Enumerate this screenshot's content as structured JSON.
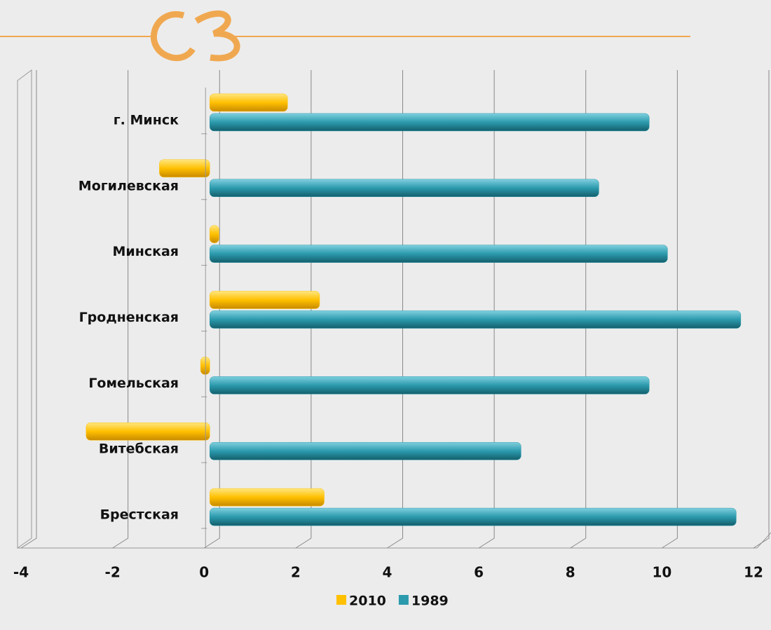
{
  "chart_data": {
    "type": "bar",
    "orientation": "horizontal",
    "categories": [
      "Брестская",
      "Витебская",
      "Гомельская",
      "Гродненская",
      "Минская",
      "Могилевская",
      "г. Минск"
    ],
    "series": [
      {
        "name": "2010",
        "color": "#ffc000",
        "values": [
          2.5,
          -2.7,
          -0.2,
          2.4,
          0.2,
          -1.1,
          1.7
        ]
      },
      {
        "name": "1989",
        "color": "#2b9aad",
        "values": [
          11.5,
          6.8,
          9.6,
          11.6,
          10.0,
          8.5,
          9.6
        ]
      }
    ],
    "xlim": [
      -4,
      12
    ],
    "xticks": [
      -4,
      -2,
      0,
      2,
      4,
      6,
      8,
      10,
      12
    ],
    "grid": true,
    "legend": "bottom"
  }
}
